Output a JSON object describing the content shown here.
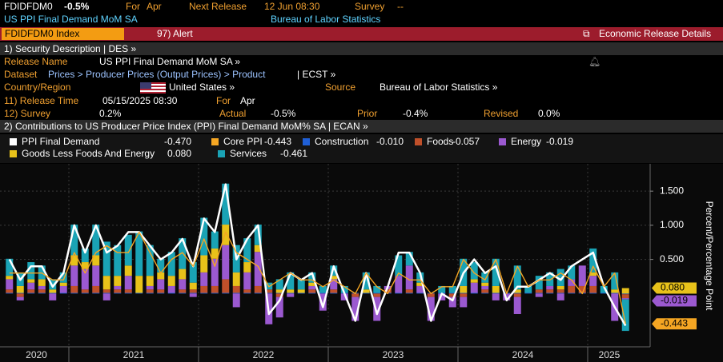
{
  "header": {
    "ticker": "FDIDFDM0",
    "change": "-0.5%",
    "for_label": "For",
    "for_value": "Apr",
    "next_release_label": "Next Release",
    "next_release": "12 Jun 08:30",
    "survey_label": "Survey",
    "survey_value": "--",
    "name": "US PPI Final Demand MoM SA",
    "source": "Bureau of Labor Statistics"
  },
  "toolbar": {
    "security": "FDIDFDM0 Index",
    "alert": "97) Alert",
    "details": "Economic Release Details"
  },
  "description": {
    "title": "1) Security Description | DES »",
    "release_name_label": "Release Name",
    "release_name": "US PPI Final Demand MoM SA »",
    "dataset_label": "Dataset",
    "dataset_path": "Prices > Producer Prices (Output Prices) > Product",
    "dataset_code": "| ECST »",
    "country_label": "Country/Region",
    "country": "United States »",
    "source_label": "Source",
    "source": "Bureau of Labor Statistics »",
    "release_time_label": "11) Release Time",
    "release_time": "05/15/2025 08:30",
    "for_label": "For",
    "for_value": "Apr",
    "survey_label": "12) Survey",
    "survey": "0.2%",
    "actual_label": "Actual",
    "actual": "-0.5%",
    "prior_label": "Prior",
    "prior": "-0.4%",
    "revised_label": "Revised",
    "revised": "0.0%"
  },
  "chart_data": {
    "type": "bar",
    "title": "2) Contributions to US Producer Price Index (PPI) Final Demand MoM% SA | ECAN »",
    "y_label": "Percent/Percentage Point",
    "categories": [
      "2020",
      null,
      null,
      null,
      null,
      null,
      "2021",
      null,
      null,
      null,
      null,
      null,
      null,
      null,
      null,
      null,
      null,
      null,
      "2022",
      null,
      null,
      null,
      null,
      null,
      null,
      null,
      null,
      null,
      null,
      null,
      "2023",
      null,
      null,
      null,
      null,
      null,
      null,
      null,
      null,
      null,
      null,
      null,
      "2024",
      null,
      null,
      null,
      null,
      null,
      null,
      null,
      null,
      null,
      null,
      null,
      "2025",
      null,
      null,
      null
    ],
    "ylim": [
      -0.78,
      1.9
    ],
    "yticks": [
      {
        "value": 0.5,
        "label": "0.500"
      },
      {
        "value": 1,
        "label": "1.000"
      },
      {
        "value": 1.5,
        "label": "1.500"
      }
    ],
    "grid": true,
    "series": [
      {
        "name": "PPI Final Demand",
        "type": "line",
        "color": "#ffffff",
        "values": [
          0.5,
          0.2,
          0.4,
          0.4,
          0.1,
          0.3,
          1.0,
          0.6,
          1.0,
          0.6,
          0.7,
          0.9,
          0.9,
          0.7,
          0.5,
          0.6,
          0.8,
          0.4,
          1.1,
          0.9,
          1.6,
          0.5,
          0.8,
          1.0,
          -0.3,
          -0.1,
          0.3,
          0.2,
          0.3,
          -0.2,
          0.4,
          0.0,
          -0.4,
          0.3,
          -0.3,
          0.1,
          0.6,
          0.6,
          0.3,
          -0.4,
          0.0,
          -0.1,
          0.3,
          0.5,
          0.3,
          0.4,
          -0.1,
          0.1,
          0.1,
          0.2,
          0.3,
          0.2,
          0.4,
          0.5,
          0.6,
          0.1,
          -0.2,
          -0.47
        ],
        "value_labels": [
          null,
          null,
          null,
          null,
          null,
          null,
          null,
          null,
          null,
          null,
          null,
          null,
          null,
          null,
          null,
          null,
          null,
          null,
          null,
          null,
          null,
          null,
          null,
          null,
          null,
          null,
          null,
          null,
          null,
          null,
          null,
          null,
          null,
          null,
          null,
          null,
          null,
          null,
          null,
          null,
          null,
          null,
          null,
          null,
          null,
          null,
          null,
          null,
          null,
          null,
          null,
          null,
          null,
          null,
          null,
          null,
          null,
          "-0.470"
        ]
      },
      {
        "name": "Core PPI",
        "type": "line",
        "color": "#f5a623",
        "tag": true,
        "values": [
          0.3,
          0.3,
          0.3,
          0.3,
          0.2,
          0.2,
          0.6,
          0.3,
          0.6,
          0.7,
          0.6,
          0.6,
          0.9,
          0.6,
          0.3,
          0.5,
          0.6,
          0.4,
          0.8,
          0.4,
          0.9,
          0.6,
          0.5,
          0.4,
          0.1,
          0.2,
          0.3,
          0.2,
          0.2,
          0.1,
          0.2,
          0.1,
          0.0,
          0.3,
          0.1,
          0.0,
          0.3,
          0.2,
          0.2,
          0.0,
          0.1,
          0.1,
          0.5,
          0.3,
          0.2,
          0.5,
          0.0,
          0.4,
          0.1,
          0.2,
          0.2,
          0.3,
          0.2,
          0.0,
          0.4,
          0.1,
          0.3,
          -0.443
        ],
        "value_labels": [
          null,
          null,
          null,
          null,
          null,
          null,
          null,
          null,
          null,
          null,
          null,
          null,
          null,
          null,
          null,
          null,
          null,
          null,
          null,
          null,
          null,
          null,
          null,
          null,
          null,
          null,
          null,
          null,
          null,
          null,
          null,
          null,
          null,
          null,
          null,
          null,
          null,
          null,
          null,
          null,
          null,
          null,
          null,
          null,
          null,
          null,
          null,
          null,
          null,
          null,
          null,
          null,
          null,
          null,
          null,
          null,
          null,
          "-0.443"
        ]
      },
      {
        "name": "Construction",
        "type": "bar",
        "color": "#1f5fd6",
        "values": [
          0.01,
          0.01,
          0.01,
          0.01,
          0.01,
          0.01,
          0.01,
          0.01,
          0.01,
          0.01,
          0.01,
          0.01,
          0.01,
          0.01,
          0.01,
          0.01,
          0.01,
          0.01,
          0.01,
          0.01,
          0.01,
          0.01,
          0.01,
          0.01,
          0.01,
          0.01,
          0.01,
          0.01,
          0.01,
          0.01,
          0.01,
          0.01,
          0.01,
          0.01,
          0.01,
          0.01,
          0.01,
          0.01,
          0.01,
          0.01,
          0.01,
          0.01,
          0.01,
          0.01,
          0.01,
          0.01,
          0.01,
          0.01,
          0.01,
          0.01,
          0.01,
          0.01,
          0.01,
          0.01,
          0.01,
          0.01,
          0.01,
          -0.01
        ],
        "value_labels": [
          null,
          null,
          null,
          null,
          null,
          null,
          null,
          null,
          null,
          null,
          null,
          null,
          null,
          null,
          null,
          null,
          null,
          null,
          null,
          null,
          null,
          null,
          null,
          null,
          null,
          null,
          null,
          null,
          null,
          null,
          null,
          null,
          null,
          null,
          null,
          null,
          null,
          null,
          null,
          null,
          null,
          null,
          null,
          null,
          null,
          null,
          null,
          null,
          null,
          null,
          null,
          null,
          null,
          null,
          null,
          null,
          null,
          "-0.010"
        ]
      },
      {
        "name": "Foods",
        "type": "bar",
        "color": "#c0502a",
        "values": [
          0.05,
          -0.05,
          0.05,
          0.05,
          0.0,
          0.0,
          0.1,
          0.05,
          0.1,
          0.05,
          0.05,
          0.05,
          0.0,
          0.05,
          0.05,
          0.0,
          0.05,
          0.05,
          0.1,
          0.1,
          0.2,
          0.1,
          0.05,
          0.1,
          0.05,
          -0.05,
          0.0,
          0.0,
          0.05,
          0.0,
          0.05,
          0.0,
          -0.05,
          0.0,
          -0.05,
          0.05,
          0.0,
          0.05,
          0.0,
          -0.05,
          0.0,
          -0.05,
          -0.05,
          0.0,
          0.05,
          0.0,
          0.0,
          -0.05,
          0.0,
          0.05,
          0.05,
          0.05,
          0.1,
          0.1,
          0.1,
          0.0,
          0.0,
          -0.057
        ],
        "value_labels": [
          null,
          null,
          null,
          null,
          null,
          null,
          null,
          null,
          null,
          null,
          null,
          null,
          null,
          null,
          null,
          null,
          null,
          null,
          null,
          null,
          null,
          null,
          null,
          null,
          null,
          null,
          null,
          null,
          null,
          null,
          null,
          null,
          null,
          null,
          null,
          null,
          null,
          null,
          null,
          null,
          null,
          null,
          null,
          null,
          null,
          null,
          null,
          null,
          null,
          null,
          null,
          null,
          null,
          null,
          null,
          null,
          null,
          "-0.057"
        ]
      },
      {
        "name": "Energy",
        "type": "bar",
        "color": "#9b59d0",
        "tag": true,
        "values": [
          0.15,
          -0.05,
          0.1,
          0.05,
          -0.1,
          0.1,
          0.3,
          0.3,
          0.3,
          -0.1,
          0.05,
          0.2,
          0.0,
          0.05,
          0.15,
          0.1,
          0.15,
          -0.05,
          0.2,
          0.4,
          0.5,
          -0.2,
          0.25,
          0.5,
          -0.45,
          -0.3,
          -0.05,
          0.0,
          0.05,
          -0.25,
          0.15,
          -0.1,
          -0.35,
          0.0,
          -0.35,
          0.05,
          0.25,
          0.35,
          0.1,
          -0.35,
          -0.1,
          -0.15,
          -0.15,
          0.15,
          0.05,
          -0.1,
          -0.1,
          -0.25,
          0.0,
          -0.05,
          0.05,
          -0.1,
          0.1,
          0.3,
          0.15,
          0.0,
          -0.4,
          -0.019
        ],
        "value_labels": [
          null,
          null,
          null,
          null,
          null,
          null,
          null,
          null,
          null,
          null,
          null,
          null,
          null,
          null,
          null,
          null,
          null,
          null,
          null,
          null,
          null,
          null,
          null,
          null,
          null,
          null,
          null,
          null,
          null,
          null,
          null,
          null,
          null,
          null,
          null,
          null,
          null,
          null,
          null,
          null,
          null,
          null,
          null,
          null,
          null,
          null,
          null,
          null,
          null,
          null,
          null,
          null,
          null,
          null,
          null,
          null,
          null,
          "-0.019"
        ]
      },
      {
        "name": "Goods Less Foods And Energy",
        "type": "bar",
        "color": "#e8c21a",
        "tag": true,
        "values": [
          0.05,
          0.1,
          0.05,
          0.1,
          0.05,
          0.05,
          0.15,
          0.1,
          0.15,
          0.2,
          0.15,
          0.15,
          0.25,
          0.15,
          0.1,
          0.15,
          0.15,
          0.1,
          0.25,
          0.15,
          0.3,
          0.2,
          0.15,
          0.1,
          0.0,
          0.05,
          0.05,
          0.05,
          0.05,
          0.0,
          0.05,
          0.0,
          0.0,
          0.05,
          0.0,
          0.0,
          0.0,
          0.0,
          0.05,
          0.0,
          0.0,
          0.0,
          0.1,
          0.05,
          0.05,
          0.1,
          0.0,
          0.05,
          0.0,
          0.0,
          0.0,
          0.05,
          0.0,
          0.0,
          0.05,
          0.0,
          0.05,
          0.08
        ],
        "value_labels": [
          null,
          null,
          null,
          null,
          null,
          null,
          null,
          null,
          null,
          null,
          null,
          null,
          null,
          null,
          null,
          null,
          null,
          null,
          null,
          null,
          null,
          null,
          null,
          null,
          null,
          null,
          null,
          null,
          null,
          null,
          null,
          null,
          null,
          null,
          null,
          null,
          null,
          null,
          null,
          null,
          null,
          null,
          null,
          null,
          null,
          null,
          null,
          null,
          null,
          null,
          null,
          null,
          null,
          null,
          null,
          null,
          null,
          "0.080"
        ]
      },
      {
        "name": "Services",
        "type": "bar",
        "color": "#1aa3b5",
        "values": [
          0.25,
          0.2,
          0.25,
          0.2,
          0.15,
          0.15,
          0.45,
          0.2,
          0.45,
          0.5,
          0.45,
          0.45,
          0.65,
          0.45,
          0.2,
          0.35,
          0.45,
          0.3,
          0.55,
          0.25,
          0.6,
          0.4,
          0.35,
          0.3,
          0.1,
          0.15,
          0.25,
          0.15,
          0.15,
          0.1,
          0.15,
          0.1,
          0.0,
          0.25,
          0.1,
          0.0,
          0.3,
          0.2,
          0.15,
          0.0,
          0.1,
          0.1,
          0.4,
          0.25,
          0.15,
          0.4,
          0.0,
          0.35,
          0.1,
          0.2,
          0.2,
          0.25,
          0.2,
          0.0,
          0.35,
          0.1,
          0.25,
          -0.461
        ],
        "value_labels": [
          null,
          null,
          null,
          null,
          null,
          null,
          null,
          null,
          null,
          null,
          null,
          null,
          null,
          null,
          null,
          null,
          null,
          null,
          null,
          null,
          null,
          null,
          null,
          null,
          null,
          null,
          null,
          null,
          null,
          null,
          null,
          null,
          null,
          null,
          null,
          null,
          null,
          null,
          null,
          null,
          null,
          null,
          null,
          null,
          null,
          null,
          null,
          null,
          null,
          null,
          null,
          null,
          null,
          null,
          null,
          null,
          null,
          "-0.461"
        ]
      }
    ]
  }
}
